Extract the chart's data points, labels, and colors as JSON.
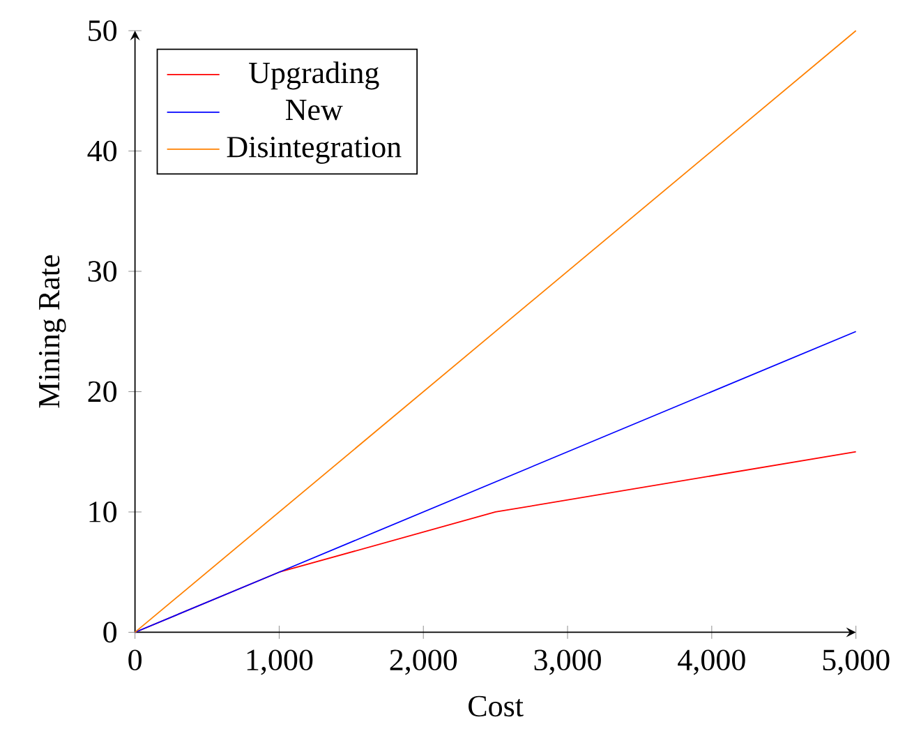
{
  "chart_data": {
    "type": "line",
    "xlabel": "Cost",
    "ylabel": "Mining Rate",
    "xlim": [
      0,
      5000
    ],
    "ylim": [
      0,
      50
    ],
    "xticks": [
      0,
      {
        "value": 1000,
        "label": "1,000"
      },
      {
        "value": 2000,
        "label": "2,000"
      },
      {
        "value": 3000,
        "label": "3,000"
      },
      {
        "value": 4000,
        "label": "4,000"
      },
      {
        "value": 5000,
        "label": "5,000"
      }
    ],
    "yticks": [
      0,
      10,
      20,
      30,
      40,
      50
    ],
    "grid": false,
    "legend": "top left",
    "marker": "none",
    "line_style": "solid",
    "series": [
      {
        "name": "Upgrading",
        "color": "#ff0000",
        "x": [
          0,
          1000,
          2500,
          5000
        ],
        "values": [
          0,
          5,
          10,
          15
        ]
      },
      {
        "name": "New",
        "color": "#0000ff",
        "x": [
          0,
          1000,
          5000
        ],
        "values": [
          0,
          5,
          25
        ]
      },
      {
        "name": "Disintegration",
        "color": "#ff8000",
        "x": [
          0,
          5000
        ],
        "values": [
          0,
          50
        ]
      }
    ]
  }
}
